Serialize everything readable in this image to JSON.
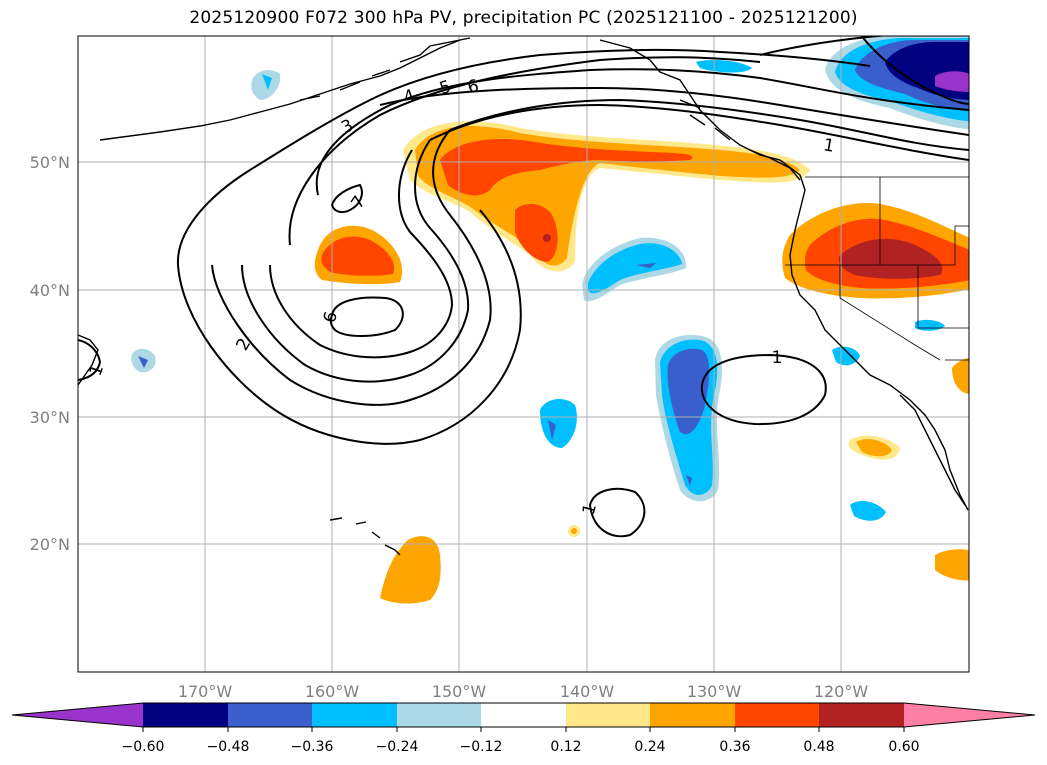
{
  "title": "2025120900 F072 300 hPa PV, precipitation PC (2025121100 - 2025121200)",
  "lon_labels": [
    "170°W",
    "160°W",
    "150°W",
    "140°W",
    "130°W",
    "120°W"
  ],
  "lat_labels": [
    "50°N",
    "40°N",
    "30°N",
    "20°N"
  ],
  "colorbar": {
    "tick_labels": [
      "−0.60",
      "−0.48",
      "−0.36",
      "−0.24",
      "−0.12",
      "0.12",
      "0.24",
      "0.36",
      "0.48",
      "0.60"
    ],
    "colors": [
      "#9933cc",
      "#000080",
      "#3a5fcd",
      "#00bfff",
      "#add8e6",
      "#ffffff",
      "#ffe88a",
      "#ffa500",
      "#ff4500",
      "#b22222",
      "#ff80a6"
    ]
  },
  "pv_contour_labels": [
    "1",
    "2",
    "3",
    "4",
    "5",
    "6",
    "7",
    "6",
    "1",
    "1",
    "1"
  ],
  "colors": {
    "orange": "#ffa500",
    "light_yellow": "#ffe88a",
    "red_orange": "#ff4500",
    "dark_red": "#b22222",
    "deep_sky_blue": "#00bfff",
    "light_blue": "#add8e6",
    "royal_blue": "#3a5fcd",
    "navy": "#000080",
    "purple": "#9933cc",
    "grid": "#b0b0b0"
  }
}
